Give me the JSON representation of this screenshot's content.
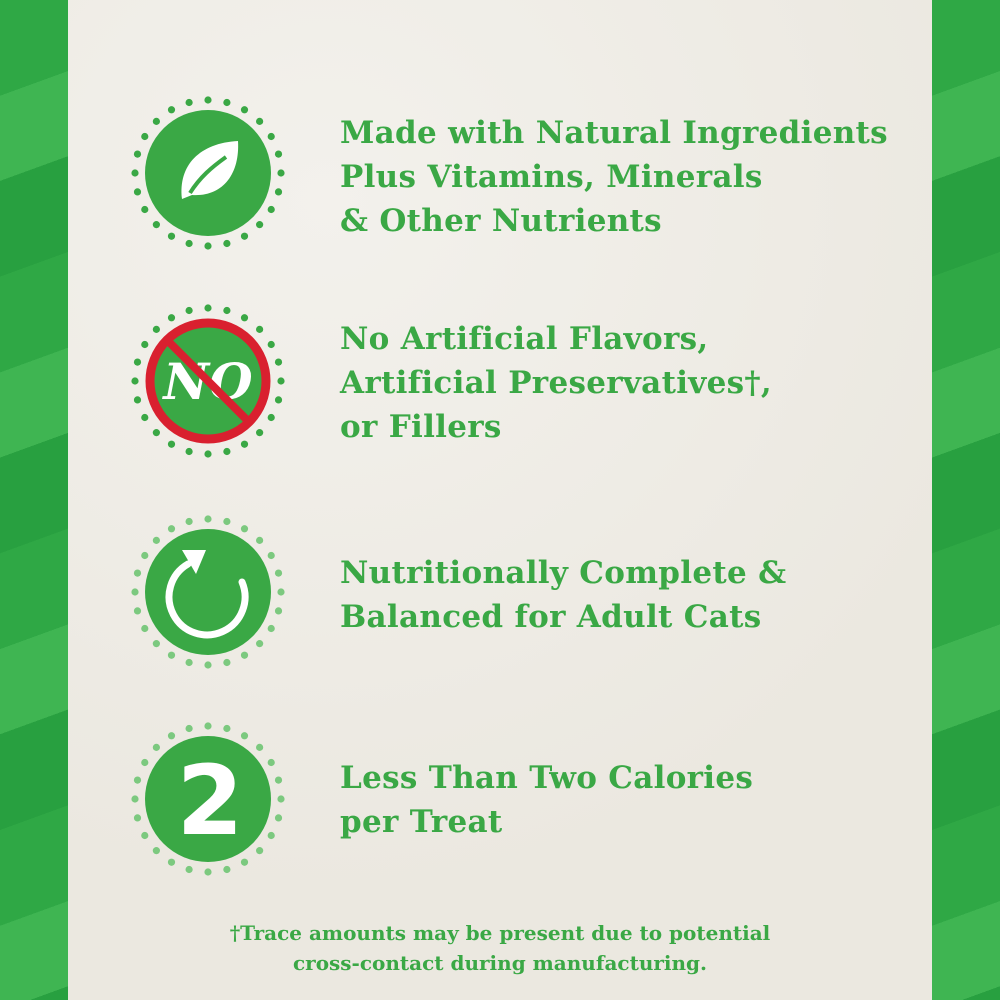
{
  "colors": {
    "green": "#3aa845",
    "light_dot": "#7cc97f",
    "red": "#d9202f",
    "white": "#ffffff"
  },
  "features": [
    {
      "icon": "leaf-icon",
      "lines": [
        "Made with Natural Ingredients",
        "Plus Vitamins, Minerals",
        "& Other Nutrients"
      ]
    },
    {
      "icon": "no-sign-icon",
      "icon_text": "NO",
      "lines": [
        "No Artificial Flavors,",
        "Artificial Preservatives†,",
        "or Fillers"
      ]
    },
    {
      "icon": "refresh-circle-icon",
      "lines": [
        "Nutritionally Complete &",
        "Balanced for Adult Cats"
      ]
    },
    {
      "icon": "number-two-icon",
      "icon_text": "2",
      "lines": [
        "Less Than Two Calories",
        "per Treat"
      ]
    }
  ],
  "footer": {
    "lines": [
      "†Trace amounts may be present due to potential",
      "cross-contact during manufacturing."
    ]
  }
}
